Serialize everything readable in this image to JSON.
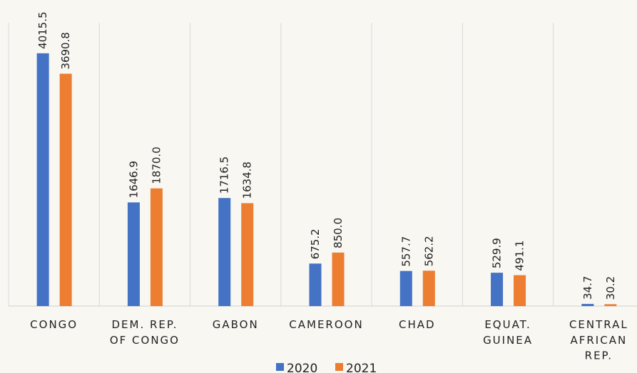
{
  "chart_data": {
    "type": "bar",
    "categories": [
      "CONGO",
      "DEM. REP.\nOF CONGO",
      "GABON",
      "CAMEROON",
      "CHAD",
      "EQUAT.\nGUINEA",
      "CENTRAL\nAFRICAN\nREP."
    ],
    "series": [
      {
        "name": "2020",
        "color": "#4472c4",
        "values": [
          4015.5,
          1646.9,
          1716.5,
          675.2,
          557.7,
          529.9,
          34.7
        ],
        "value_labels": [
          "4015.5",
          "1646.9",
          "1716.5",
          "675.2",
          "557.7",
          "529.9",
          "34.7"
        ]
      },
      {
        "name": "2021",
        "color": "#ed7d31",
        "values": [
          3690.8,
          1870.0,
          1634.8,
          850.0,
          562.2,
          491.1,
          30.2
        ],
        "value_labels": [
          "3690.8",
          "1870.0",
          "1634.8",
          "850.0",
          "562.2",
          "491.1",
          "30.2"
        ]
      }
    ],
    "ylim": [
      0,
      4500
    ],
    "legend": "bottom"
  }
}
